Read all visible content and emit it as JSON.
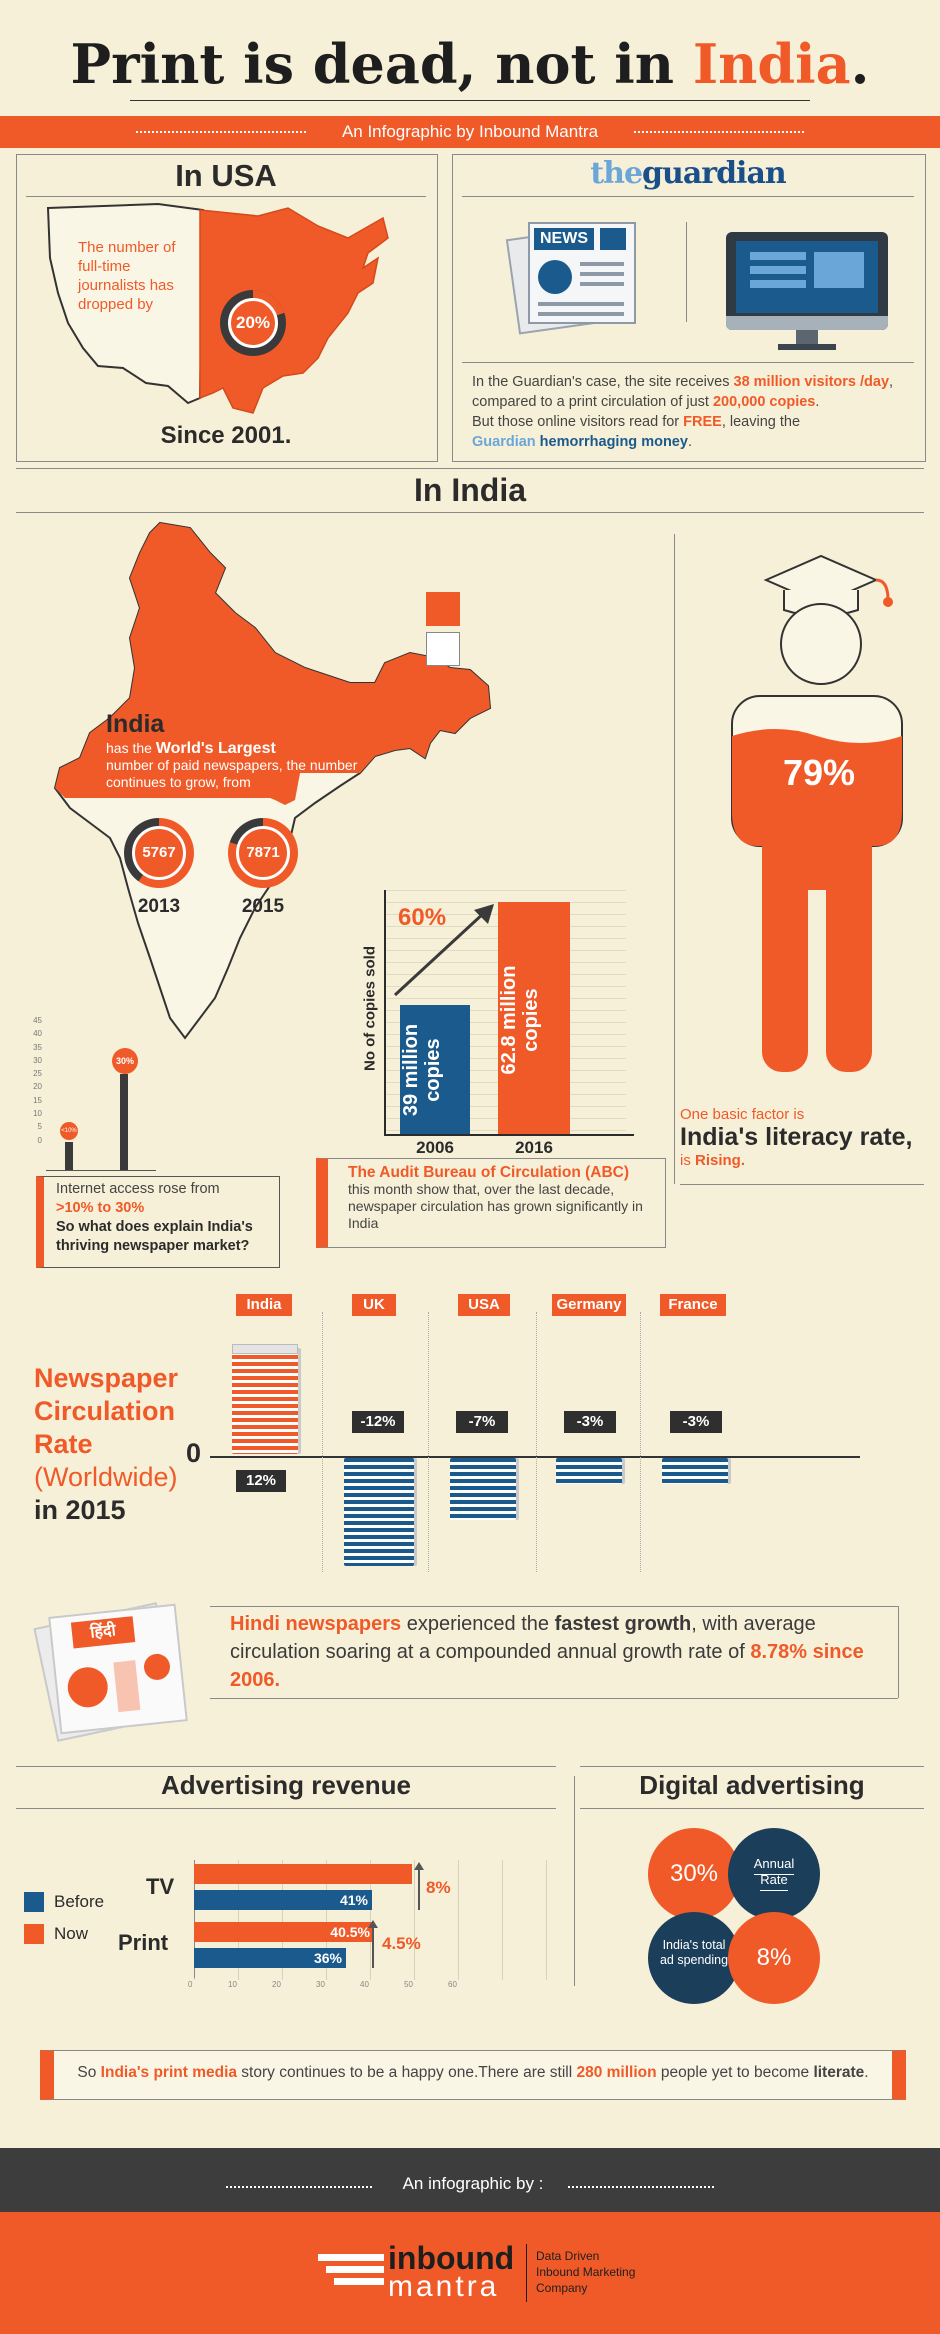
{
  "header": {
    "title_main": "Print is dead, not in ",
    "title_accent": "India",
    "title_end": ".",
    "subtitle": "An Infographic by Inbound Mantra"
  },
  "usa": {
    "heading": "In USA",
    "text": "The number of full-time journalists has dropped by",
    "percent": "20%",
    "since": "Since 2001.",
    "percent_value": 20
  },
  "guardian": {
    "logo_pre": "the",
    "logo_main": "guardian",
    "news_label": "NEWS",
    "p1_pre": "In the Guardian's case, the site receives ",
    "p1_hl": "38 million visitors /day",
    "p1_post": ",",
    "p2_pre": "compared to a print circulation of just ",
    "p2_hl": "200,000 copies",
    "p2_post": ".",
    "p3_pre": "But those online visitors read for ",
    "p3_hl": "FREE",
    "p3_post": ", leaving the",
    "p4_a": "Guardian",
    "p4_b": " hemorrhaging money",
    "p4_post": "."
  },
  "india": {
    "heading": "In India",
    "name": "India",
    "has_the": "has the ",
    "worlds_largest": "World's Largest",
    "desc": "number of paid newspapers, the number continues to grow, from",
    "year1": "2013",
    "value1": "5767",
    "year2": "2015",
    "value2": "7871"
  },
  "copies_chart": {
    "ylabel": "No of copies sold",
    "growth": "60%",
    "bar1_label": "39 million copies",
    "bar2_label": "62.8 million copies",
    "year1": "2006",
    "year2": "2016"
  },
  "abc": {
    "title": "The Audit Bureau of Circulation (ABC)",
    "text": "this month show that, over the last decade, newspaper circulation has grown significantly in India"
  },
  "internet": {
    "ticks": [
      "45",
      "40",
      "35",
      "30",
      "25",
      "20",
      "15",
      "10",
      "5",
      "0"
    ],
    "small_label": "<10%",
    "big_label": "30%",
    "line1": "Internet access rose from",
    "line2": ">10% to 30%",
    "line3": "So what does explain India's thriving newspaper market?"
  },
  "literacy": {
    "percent": "79%",
    "line1": "One basic factor is",
    "line2": "India's literacy rate,",
    "line3_pre": "is ",
    "line3_hl": "Rising."
  },
  "circulation": {
    "title_lines": [
      "Newspaper",
      "Circulation",
      "Rate"
    ],
    "worldwide": "(Worldwide)",
    "year": "in 2015",
    "zero": "0",
    "countries": [
      {
        "name": "India",
        "value": "12%"
      },
      {
        "name": "UK",
        "value": "-12%"
      },
      {
        "name": "USA",
        "value": "-7%"
      },
      {
        "name": "Germany",
        "value": "-3%"
      },
      {
        "name": "France",
        "value": "-3%"
      }
    ]
  },
  "hindi": {
    "paper_label": "हिंदी",
    "t1": "Hindi newspapers",
    "t2": " experienced the ",
    "t3": "fastest growth",
    "t4": ", with average circulation soaring at a compounded annual growth rate of ",
    "t5": "8.78% since 2006."
  },
  "adrev": {
    "title": "Advertising revenue",
    "legend_before": "Before",
    "legend_now": "Now",
    "tv": "TV",
    "print": "Print",
    "tv_now": "",
    "tv_before": "41%",
    "print_now": "40.5%",
    "print_before": "36%",
    "tv_change": "8%",
    "print_change": "4.5%",
    "axis_ticks": [
      "0",
      "10",
      "20",
      "30",
      "40",
      "50",
      "60"
    ],
    "before_color": "#1b5a8c",
    "now_color": "#f05a28"
  },
  "digital": {
    "title": "Digital advertising",
    "c1": "30%",
    "c2": "Annual Rate",
    "c3": "India's total ad spending",
    "c4": "8%"
  },
  "footer_note": {
    "a": "So ",
    "b": "India's print media",
    "c": " story continues to be a happy one.There are still ",
    "d": "280 million",
    "e": " people yet to become ",
    "f": "literate",
    "g": "."
  },
  "footer": {
    "by": "An infographic by :",
    "logo1": "inbound",
    "logo2": "mantra",
    "tagline": "Data Driven Inbound Marketing Company"
  },
  "colors": {
    "accent": "#f05a28",
    "blue": "#1b5a8c",
    "dark": "#2f2f2f",
    "cream": "#f7f0d8"
  }
}
